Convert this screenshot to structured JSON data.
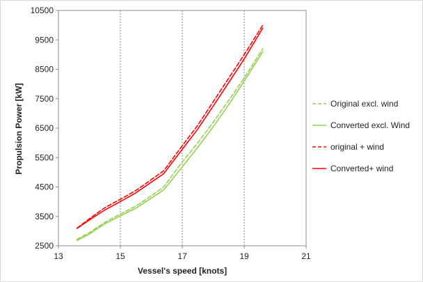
{
  "chart_data": {
    "type": "line",
    "title": "",
    "xlabel": "Vessel's speed [knots]",
    "ylabel": "Propulsion Power [kW]",
    "xlim": [
      13,
      21
    ],
    "ylim": [
      2500,
      10500
    ],
    "xticks": [
      13,
      15,
      17,
      19,
      21
    ],
    "yticks": [
      2500,
      3500,
      4500,
      5500,
      6500,
      7500,
      8500,
      9500,
      10500
    ],
    "grid": {
      "vertical": true,
      "horizontal": false,
      "style": "dotted"
    },
    "legend_position": "right",
    "series": [
      {
        "name": "Original excl. wind",
        "color": "#92d050",
        "dash": "dashed",
        "x": [
          13.6,
          14.0,
          14.5,
          15.0,
          15.5,
          16.0,
          16.4,
          17.0,
          17.5,
          18.0,
          18.5,
          19.0,
          19.6
        ],
        "y": [
          2720,
          2950,
          3300,
          3580,
          3850,
          4200,
          4500,
          5350,
          6000,
          6700,
          7450,
          8200,
          9200
        ]
      },
      {
        "name": "Converted excl. Wind",
        "color": "#92d050",
        "dash": "solid",
        "x": [
          13.6,
          14.0,
          14.5,
          15.0,
          15.5,
          16.0,
          16.4,
          17.0,
          17.5,
          18.0,
          18.5,
          19.0,
          19.6
        ],
        "y": [
          2680,
          2900,
          3250,
          3520,
          3780,
          4120,
          4400,
          5180,
          5850,
          6550,
          7300,
          8100,
          9100
        ]
      },
      {
        "name": "original + wind",
        "color": "#ff0000",
        "dash": "dashed",
        "x": [
          13.6,
          14.0,
          14.5,
          15.0,
          15.5,
          16.0,
          16.4,
          17.0,
          17.5,
          18.0,
          18.5,
          19.0,
          19.6
        ],
        "y": [
          3100,
          3420,
          3800,
          4080,
          4380,
          4750,
          5050,
          5900,
          6600,
          7400,
          8200,
          9000,
          10000
        ]
      },
      {
        "name": "Converted+ wind",
        "color": "#ff0000",
        "dash": "solid",
        "x": [
          13.6,
          14.0,
          14.5,
          15.0,
          15.5,
          16.0,
          16.4,
          17.0,
          17.5,
          18.0,
          18.5,
          19.0,
          19.6
        ],
        "y": [
          3090,
          3380,
          3720,
          4000,
          4300,
          4660,
          4950,
          5780,
          6470,
          7250,
          8050,
          8850,
          9900
        ]
      }
    ]
  }
}
